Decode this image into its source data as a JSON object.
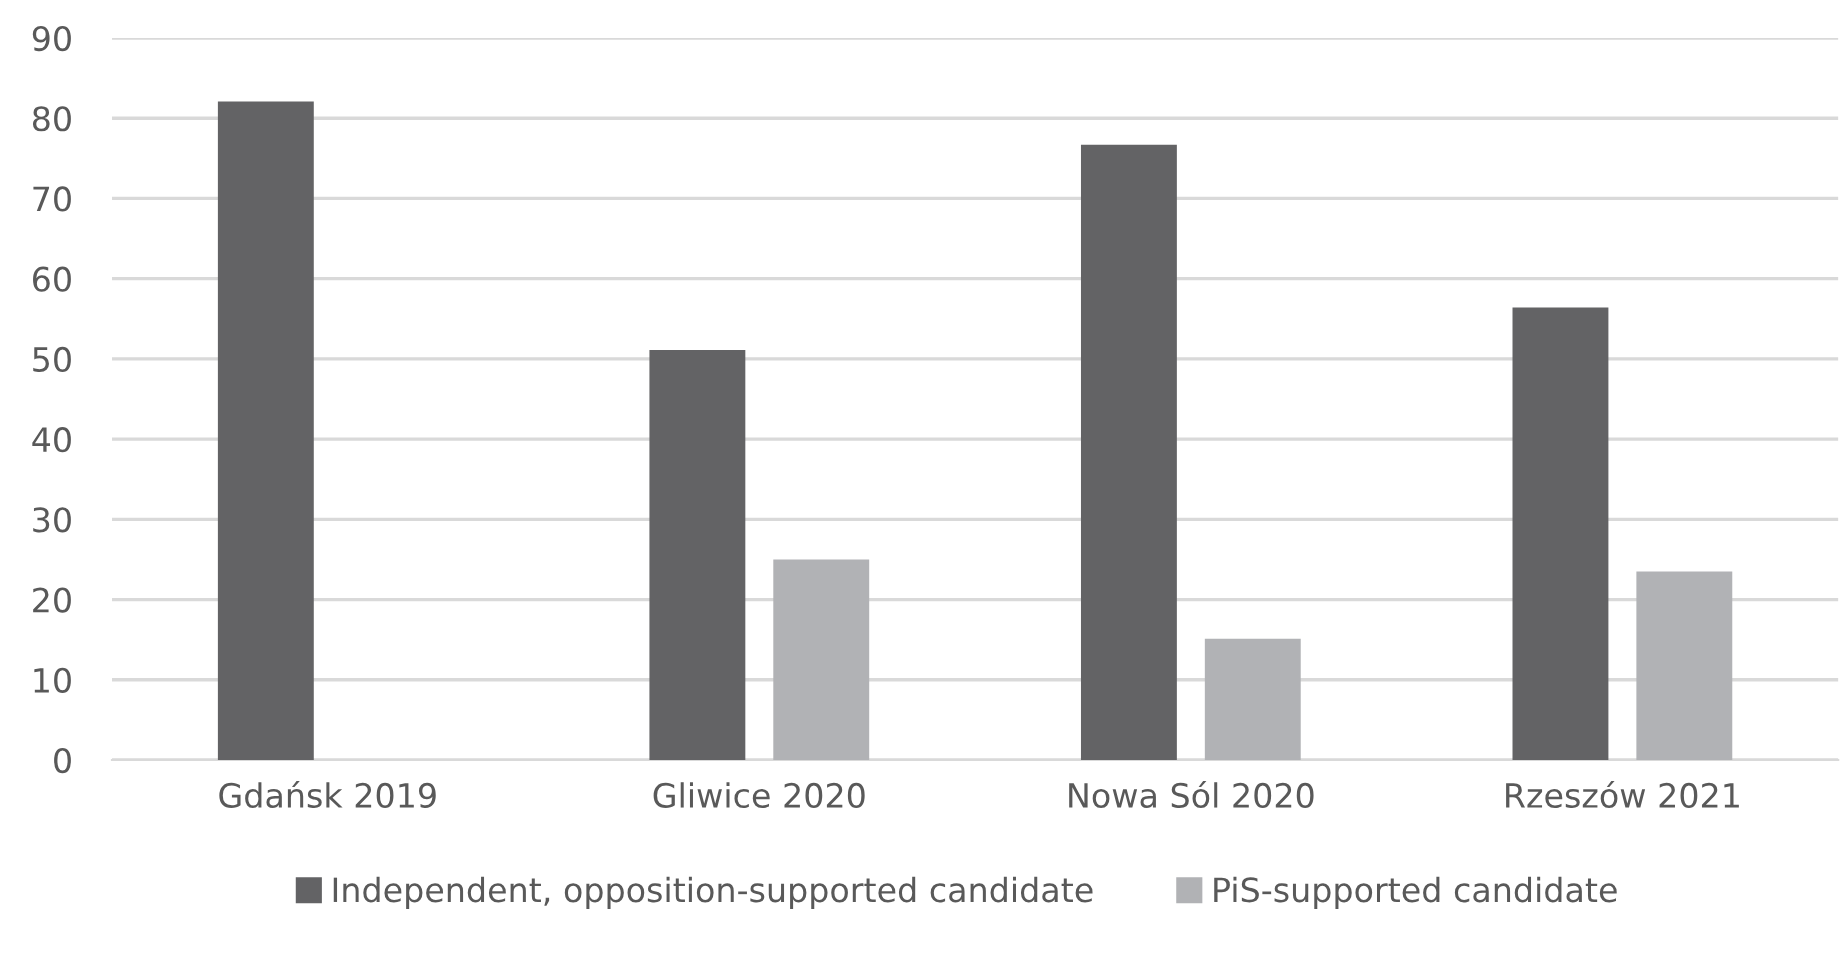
{
  "chart_data": {
    "type": "bar",
    "categories": [
      "Gdańsk 2019",
      "Gliwice 2020",
      "Nowa Sól 2020",
      "Rzeszów 2021"
    ],
    "series": [
      {
        "name": "Independent, opposition-supported candidate",
        "color": "#636365",
        "values": [
          82.1,
          51.1,
          76.7,
          56.4
        ]
      },
      {
        "name": "PiS-supported candidate",
        "color": "#b1b2b5",
        "values": [
          null,
          25.0,
          15.1,
          23.5
        ]
      }
    ],
    "ylim": [
      0,
      90
    ],
    "yticks": [
      0,
      10,
      20,
      30,
      40,
      50,
      60,
      70,
      80,
      90
    ],
    "grid": "y",
    "legend": "bottom"
  }
}
